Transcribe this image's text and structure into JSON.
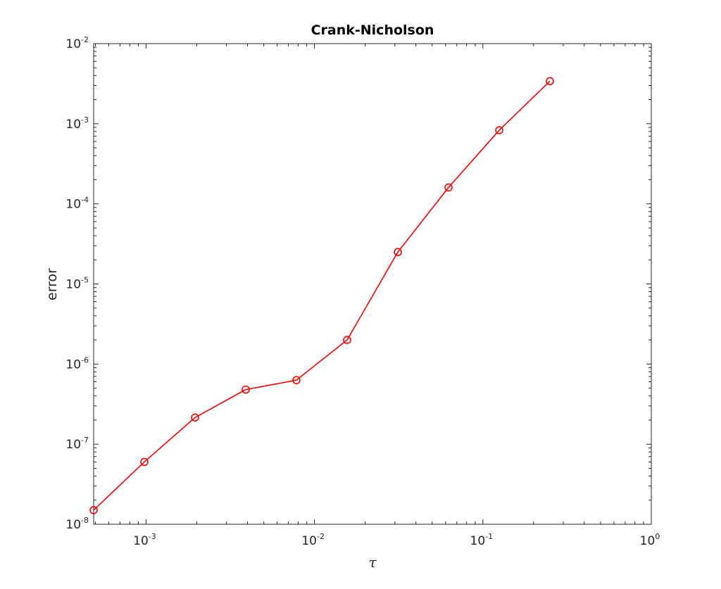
{
  "chart_data": {
    "type": "line",
    "title": "Crank-Nicholson",
    "xlabel": "τ",
    "ylabel": "error",
    "xscale": "log",
    "yscale": "log",
    "xlim": [
      0.00048828125,
      1
    ],
    "ylim": [
      1e-08,
      0.01
    ],
    "grid": false,
    "legend": "none",
    "x_ticks": [
      {
        "value": 0.001,
        "base": "10",
        "exp": "-3"
      },
      {
        "value": 0.01,
        "base": "10",
        "exp": "-2"
      },
      {
        "value": 0.1,
        "base": "10",
        "exp": "-1"
      },
      {
        "value": 1,
        "base": "10",
        "exp": "0"
      }
    ],
    "y_ticks": [
      {
        "value": 1e-08,
        "base": "10",
        "exp": "-8"
      },
      {
        "value": 1e-07,
        "base": "10",
        "exp": "-7"
      },
      {
        "value": 1e-06,
        "base": "10",
        "exp": "-6"
      },
      {
        "value": 1e-05,
        "base": "10",
        "exp": "-5"
      },
      {
        "value": 0.0001,
        "base": "10",
        "exp": "-4"
      },
      {
        "value": 0.001,
        "base": "10",
        "exp": "-3"
      },
      {
        "value": 0.01,
        "base": "10",
        "exp": "-2"
      }
    ],
    "series": [
      {
        "color": "#ff0000",
        "marker": "circle-open",
        "x": [
          0.00048828125,
          0.0009765625,
          0.001953125,
          0.00390625,
          0.0078125,
          0.015625,
          0.03125,
          0.0625,
          0.125,
          0.25
        ],
        "y": [
          1.5e-08,
          6e-08,
          2.15e-07,
          4.8e-07,
          6.3e-07,
          2e-06,
          2.5e-05,
          0.00016,
          0.00083,
          0.0034
        ]
      }
    ]
  }
}
